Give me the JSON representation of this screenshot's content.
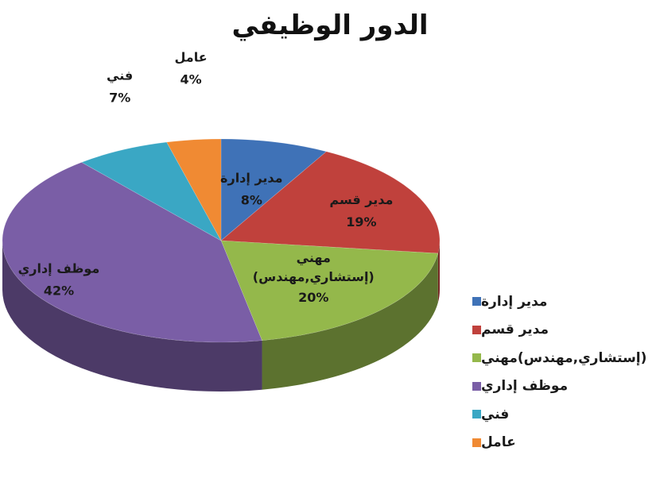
{
  "chart_data": {
    "type": "pie",
    "title": "الدور الوظيفي",
    "slices": [
      {
        "label": "مدير إدارة",
        "value": 8,
        "value_label": "8%",
        "color": "#3f72b7"
      },
      {
        "label": "مدير قسم",
        "value": 19,
        "value_label": "19%",
        "color": "#c0413c"
      },
      {
        "label": "مهني (إستشاري,مهندس)",
        "label_line1": "مهني",
        "label_line2": "(إستشاري,مهندس)",
        "value": 20,
        "value_label": "20%",
        "color": "#94b84b"
      },
      {
        "label": "موظف إداري",
        "value": 42,
        "value_label": "42%",
        "color": "#7a5ea6"
      },
      {
        "label": "فني",
        "value": 7,
        "value_label": "7%",
        "color": "#3aa7c4"
      },
      {
        "label": "عامل",
        "value": 4,
        "value_label": "4%",
        "color": "#f08a33"
      }
    ],
    "legend": {
      "placement": "right-bottom",
      "entries": [
        "مدير إدارة",
        "مدير قسم",
        "(إستشاري,مهندس)مهني",
        "موظف إداري",
        "فني",
        "عامل"
      ]
    },
    "style": "3d-pie"
  }
}
